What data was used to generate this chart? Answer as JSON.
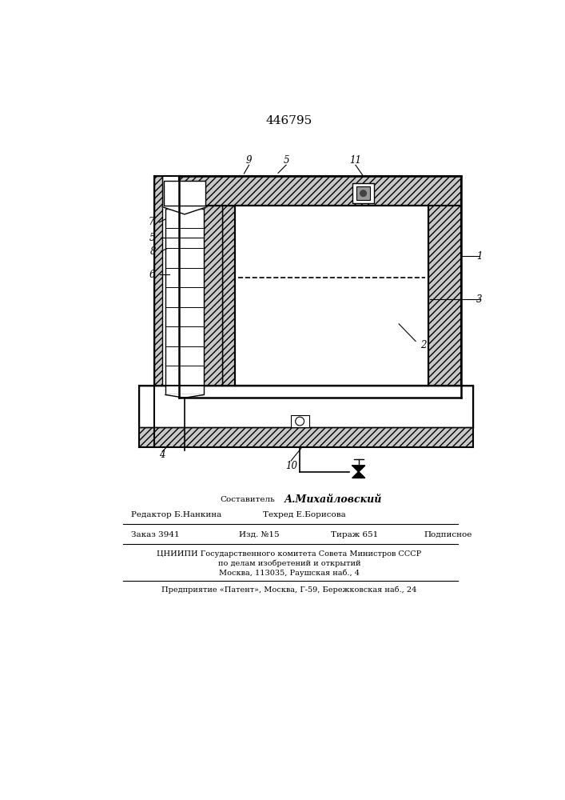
{
  "title": "446795",
  "bg_color": "#ffffff",
  "fig_width": 7.07,
  "fig_height": 10.0,
  "footer": {
    "sostavitel_label": "Составитель",
    "sostavitel_name": "А.Михайловский",
    "redaktor": "Редактор Б.Нанкина",
    "tehred": "Техред Е.Борисова",
    "zakaz": "Заказ 3941",
    "izd": "Изд. №15",
    "tirazh": "Тираж 651",
    "podpisnoe": "Подписное",
    "tsniip1": "ЦНИИПИ Государственного комитета Совета Министров СССР",
    "tsniip2": "по делам изобретений и открытий",
    "tsniip3": "Москва, 113035, Раушская наб., 4",
    "predpr": "Предприятие «Патент», Москва, Г-59, Бережковская наб., 24"
  }
}
